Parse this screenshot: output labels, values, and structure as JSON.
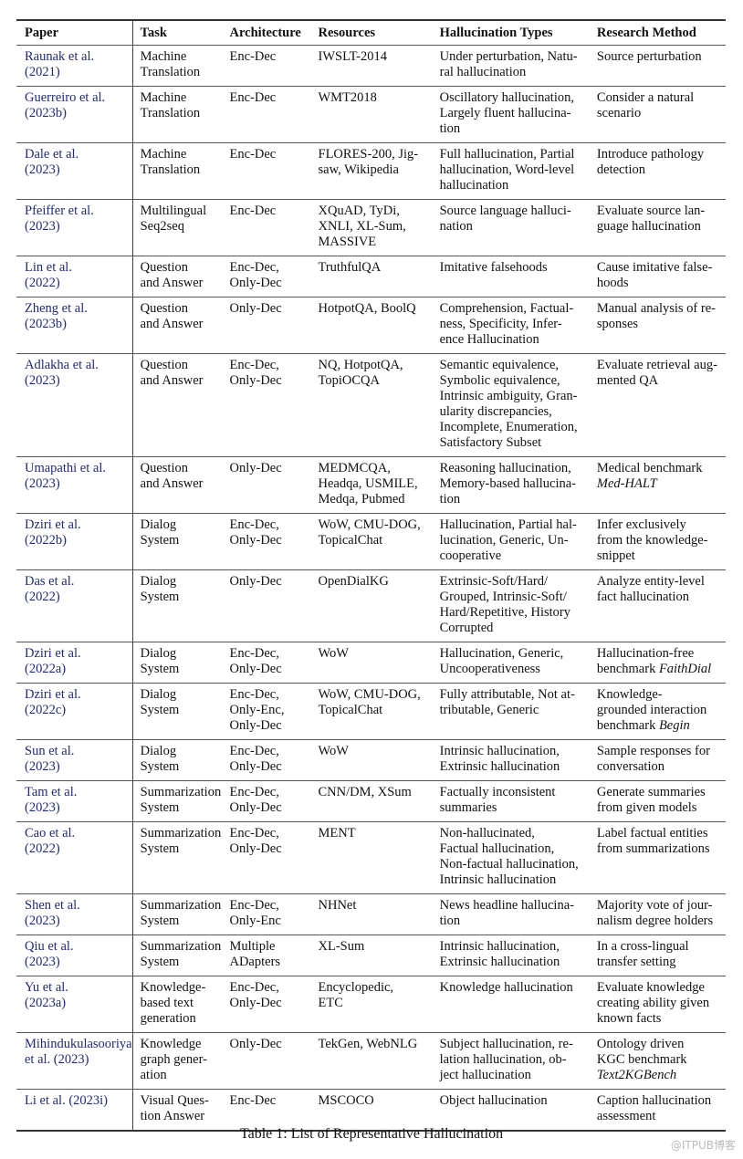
{
  "headers": [
    "Paper",
    "Task",
    "Architecture",
    "Resources",
    "Hallucination Types",
    "Research Method"
  ],
  "rows": [
    {
      "paper": "Raunak et al.\n(2021)",
      "task": "Machine\nTranslation",
      "arch": "Enc-Dec",
      "res": "IWSLT-2014",
      "types": "Under perturbation, Natu-\nral hallucination",
      "method": "Source perturbation",
      "em": ""
    },
    {
      "paper": "Guerreiro et al.\n(2023b)",
      "task": "Machine\nTranslation",
      "arch": "Enc-Dec",
      "res": "WMT2018",
      "types": "Oscillatory hallucination,\nLargely fluent hallucina-\ntion",
      "method": "Consider a natural\nscenario",
      "em": ""
    },
    {
      "paper": "Dale et al.\n(2023)",
      "task": "Machine\nTranslation",
      "arch": "Enc-Dec",
      "res": "FLORES-200, Jig-\nsaw, Wikipedia",
      "types": "Full hallucination, Partial\nhallucination, Word-level\nhallucination",
      "method": "Introduce pathology\ndetection",
      "em": ""
    },
    {
      "paper": "Pfeiffer et al.\n(2023)",
      "task": "Multilingual\nSeq2seq",
      "arch": "Enc-Dec",
      "res": "XQuAD, TyDi,\nXNLI, XL-Sum,\nMASSIVE",
      "types": "Source language halluci-\nnation",
      "method": "Evaluate source lan-\nguage hallucination",
      "em": ""
    },
    {
      "paper": "Lin et al.\n(2022)",
      "task": "Question\nand Answer",
      "arch": "Enc-Dec,\nOnly-Dec",
      "res": "TruthfulQA",
      "types": "Imitative falsehoods",
      "method": "Cause imitative false-\nhoods",
      "em": ""
    },
    {
      "paper": "Zheng et al.\n(2023b)",
      "task": "Question\nand Answer",
      "arch": "Only-Dec",
      "res": "HotpotQA, BoolQ",
      "types": "Comprehension, Factual-\nness, Specificity, Infer-\nence Hallucination",
      "method": "Manual analysis of re-\nsponses",
      "em": ""
    },
    {
      "paper": "Adlakha et al.\n(2023)",
      "task": "Question\nand Answer",
      "arch": "Enc-Dec,\nOnly-Dec",
      "res": "NQ, HotpotQA,\nTopiOCQA",
      "types": "Semantic equivalence,\nSymbolic equivalence,\nIntrinsic ambiguity, Gran-\nularity discrepancies,\nIncomplete, Enumeration,\nSatisfactory Subset",
      "method": "Evaluate retrieval aug-\nmented QA",
      "em": ""
    },
    {
      "paper": "Umapathi et al.\n(2023)",
      "task": "Question\nand Answer",
      "arch": "Only-Dec",
      "res": "MEDMCQA,\nHeadqa, USMILE,\nMedqa, Pubmed",
      "types": "Reasoning hallucination,\nMemory-based hallucina-\ntion",
      "method": "Medical benchmark\n",
      "em": "Med-HALT"
    },
    {
      "paper": "Dziri et al.\n(2022b)",
      "task": "Dialog\nSystem",
      "arch": "Enc-Dec,\nOnly-Dec",
      "res": "WoW, CMU-DOG,\nTopicalChat",
      "types": "Hallucination, Partial hal-\nlucination, Generic, Un-\ncooperative",
      "method": "Infer exclusively\nfrom the knowledge-\nsnippet",
      "em": ""
    },
    {
      "paper": "Das et al.\n(2022)",
      "task": "Dialog\nSystem",
      "arch": "Only-Dec",
      "res": "OpenDialKG",
      "types": "Extrinsic-Soft/Hard/\nGrouped, Intrinsic-Soft/\nHard/Repetitive, History\nCorrupted",
      "method": "Analyze entity-level\nfact hallucination",
      "em": ""
    },
    {
      "paper": "Dziri et al.\n(2022a)",
      "task": "Dialog\nSystem",
      "arch": "Enc-Dec,\nOnly-Dec",
      "res": "WoW",
      "types": "Hallucination, Generic,\nUncooperativeness",
      "method": "Hallucination-free\nbenchmark ",
      "em": "FaithDial"
    },
    {
      "paper": "Dziri et al.\n(2022c)",
      "task": "Dialog\nSystem",
      "arch": "Enc-Dec,\nOnly-Enc,\nOnly-Dec",
      "res": "WoW, CMU-DOG,\nTopicalChat",
      "types": "Fully attributable, Not at-\ntributable, Generic",
      "method": "Knowledge-\ngrounded interaction\nbenchmark ",
      "em": "Begin"
    },
    {
      "paper": "Sun et al.\n(2023)",
      "task": "Dialog\nSystem",
      "arch": "Enc-Dec,\nOnly-Dec",
      "res": "WoW",
      "types": "Intrinsic hallucination,\nExtrinsic hallucination",
      "method": "Sample responses for\nconversation",
      "em": ""
    },
    {
      "paper": "Tam et al.\n(2023)",
      "task": "Summarization\nSystem",
      "arch": "Enc-Dec,\nOnly-Dec",
      "res": "CNN/DM, XSum",
      "types": "Factually inconsistent\nsummaries",
      "method": "Generate summaries\nfrom given models",
      "em": ""
    },
    {
      "paper": "Cao et al.\n(2022)",
      "task": "Summarization\nSystem",
      "arch": "Enc-Dec,\nOnly-Dec",
      "res": "MENT",
      "types": "Non-hallucinated,\nFactual hallucination,\nNon-factual hallucination,\nIntrinsic hallucination",
      "method": "Label factual entities\nfrom summarizations",
      "em": ""
    },
    {
      "paper": "Shen et al.\n(2023)",
      "task": "Summarization\nSystem",
      "arch": "Enc-Dec,\nOnly-Enc",
      "res": "NHNet",
      "types": "News headline hallucina-\ntion",
      "method": "Majority vote of jour-\nnalism degree holders",
      "em": ""
    },
    {
      "paper": "Qiu et al.\n(2023)",
      "task": "Summarization\nSystem",
      "arch": "Multiple\nADapters",
      "res": "XL-Sum",
      "types": "Intrinsic hallucination,\nExtrinsic hallucination",
      "method": "In a cross-lingual\ntransfer setting",
      "em": ""
    },
    {
      "paper": "Yu et al.\n(2023a)",
      "task": "Knowledge-\nbased text\ngeneration",
      "arch": "Enc-Dec,\nOnly-Dec",
      "res": "Encyclopedic,\nETC",
      "types": "Knowledge hallucination",
      "method": "Evaluate knowledge\ncreating ability given\nknown facts",
      "em": ""
    },
    {
      "paper": "Mihindukulasooriya\net al. (2023)",
      "task": "Knowledge\ngraph gener-\nation",
      "arch": "Only-Dec",
      "res": "TekGen, WebNLG",
      "types": "Subject hallucination, re-\nlation hallucination, ob-\nject hallucination",
      "method": "Ontology driven\nKGC benchmark\n",
      "em": "Text2KGBench"
    },
    {
      "paper": "Li et al. (2023i)",
      "task": "Visual Ques-\ntion Answer",
      "arch": "Enc-Dec",
      "res": "MSCOCO",
      "types": "Object hallucination",
      "method": "Caption hallucination\nassessment",
      "em": ""
    }
  ],
  "caption": "Table 1: List of Representative Hallucination",
  "watermark": "@ITPUB博客",
  "colors": {
    "citation": "#1f2a78",
    "rule": "#333333",
    "watermark": "#bbbbbb"
  }
}
